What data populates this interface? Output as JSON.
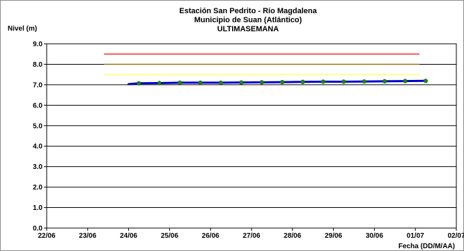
{
  "chart_data": {
    "type": "line",
    "title_lines": [
      "Estación San Pedrito - Río Magdalena",
      "Municipio de Suan (Atlántico)",
      "ULTIMASEMANA"
    ],
    "ylabel": "Nivel (m)",
    "xlabel": "Fecha (DD/M/AA)",
    "ylim": [
      0,
      9
    ],
    "yticks": [
      "0.0",
      "1.0",
      "2.0",
      "3.0",
      "4.0",
      "5.0",
      "6.0",
      "7.0",
      "8.0",
      "9.0"
    ],
    "xlim": [
      0,
      10
    ],
    "xticks": [
      "22/06",
      "23/06",
      "24/06",
      "25/06",
      "26/06",
      "27/06",
      "28/06",
      "29/06",
      "30/06",
      "01/07",
      "02/07"
    ],
    "grid": "horizontal",
    "colors": {
      "level_line": "#0000cc",
      "points": "#1a8a1a",
      "threshold_red": "#ff0000",
      "threshold_orange": "#996600",
      "threshold_yellow": "#ffff66"
    },
    "thresholds": [
      {
        "value": 8.5,
        "x": [
          1.4,
          9.1
        ],
        "color": "#ff0000"
      },
      {
        "value": 8.0,
        "x": [
          1.4,
          9.1
        ],
        "color": "#996600"
      },
      {
        "value": 7.5,
        "x": [
          1.4,
          9.1
        ],
        "color": "#ffff66"
      }
    ],
    "series": [
      {
        "x": [
          2.0,
          2.25,
          2.75,
          3.25,
          3.75,
          4.25,
          4.75,
          5.25,
          5.75,
          6.25,
          6.75,
          7.25,
          7.75,
          8.25,
          8.75,
          9.25
        ],
        "values": [
          7.03,
          7.07,
          7.08,
          7.1,
          7.1,
          7.1,
          7.11,
          7.12,
          7.13,
          7.14,
          7.15,
          7.15,
          7.16,
          7.17,
          7.18,
          7.19
        ]
      }
    ],
    "point_series": [
      {
        "x": [
          2.25,
          2.75,
          3.25,
          3.75,
          4.25,
          4.75,
          5.25,
          5.75,
          6.25,
          6.75,
          7.25,
          7.75,
          8.25,
          8.75,
          9.25
        ],
        "values": [
          7.07,
          7.08,
          7.1,
          7.1,
          7.1,
          7.11,
          7.12,
          7.13,
          7.14,
          7.15,
          7.15,
          7.16,
          7.17,
          7.18,
          7.19
        ]
      }
    ]
  }
}
